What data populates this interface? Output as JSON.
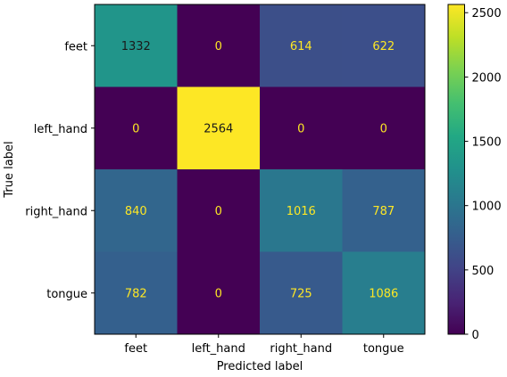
{
  "chart_data": {
    "type": "heatmap",
    "title": "",
    "xlabel": "Predicted label",
    "ylabel": "True label",
    "x_categories": [
      "feet",
      "left_hand",
      "right_hand",
      "tongue"
    ],
    "y_categories": [
      "feet",
      "left_hand",
      "right_hand",
      "tongue"
    ],
    "values": [
      [
        1332,
        0,
        614,
        622
      ],
      [
        0,
        2564,
        0,
        0
      ],
      [
        840,
        0,
        1016,
        787
      ],
      [
        782,
        0,
        725,
        1086
      ]
    ],
    "colormap": "viridis",
    "colorbar": {
      "min": 0,
      "max": 2564,
      "ticks": [
        0,
        500,
        1000,
        1500,
        2000,
        2500
      ]
    },
    "text_colors": {
      "dark_cell": "#fde725",
      "light_cell": "#1a1a1a"
    }
  }
}
